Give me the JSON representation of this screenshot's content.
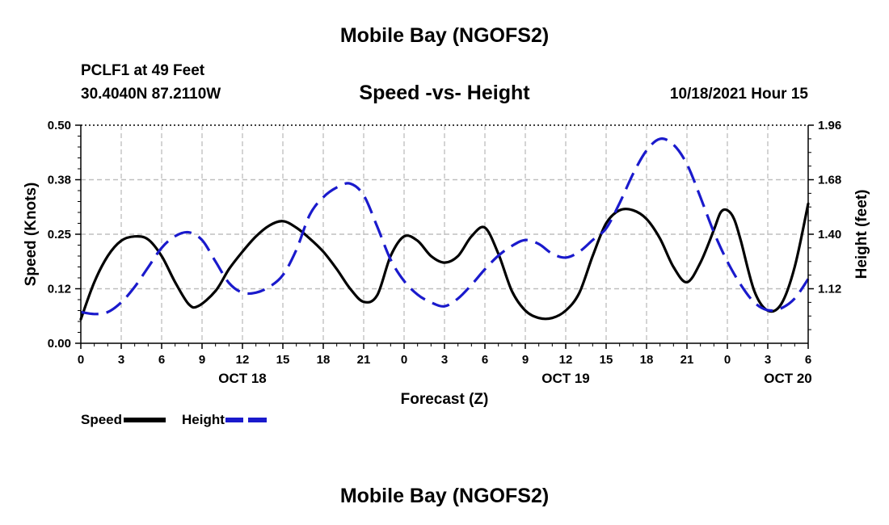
{
  "header": {
    "title": "Mobile Bay (NGOFS2)",
    "station": "PCLF1 at 49 Feet",
    "coords": "30.4040N  87.2110W",
    "subtitle": "Speed -vs- Height",
    "datetime": "10/18/2021 Hour 15"
  },
  "footer": {
    "title": "Mobile Bay (NGOFS2)"
  },
  "legend": {
    "speed_label": "Speed",
    "height_label": "Height",
    "speed_color": "#000000",
    "height_color": "#1a1acc"
  },
  "chart_data": {
    "type": "line",
    "title": "Speed -vs- Height",
    "xlabel": "Forecast (Z)",
    "ylabel": "Speed (Knots)",
    "y2label": "Height (feet)",
    "x_range_hours": [
      0,
      54
    ],
    "xticks": [
      {
        "h": 0,
        "label": "0"
      },
      {
        "h": 3,
        "label": "3"
      },
      {
        "h": 6,
        "label": "6"
      },
      {
        "h": 9,
        "label": "9"
      },
      {
        "h": 12,
        "label": "12"
      },
      {
        "h": 15,
        "label": "15"
      },
      {
        "h": 18,
        "label": "18"
      },
      {
        "h": 21,
        "label": "21"
      },
      {
        "h": 24,
        "label": "0"
      },
      {
        "h": 27,
        "label": "3"
      },
      {
        "h": 30,
        "label": "6"
      },
      {
        "h": 33,
        "label": "9"
      },
      {
        "h": 36,
        "label": "12"
      },
      {
        "h": 39,
        "label": "15"
      },
      {
        "h": 42,
        "label": "18"
      },
      {
        "h": 45,
        "label": "21"
      },
      {
        "h": 48,
        "label": "0"
      },
      {
        "h": 51,
        "label": "3"
      },
      {
        "h": 54,
        "label": "6"
      }
    ],
    "day_labels": [
      {
        "h": 12,
        "label": "OCT 18"
      },
      {
        "h": 36,
        "label": "OCT 19"
      },
      {
        "h": 52.5,
        "label": "OCT 20"
      }
    ],
    "ylim": [
      0,
      0.5
    ],
    "yticks": [
      {
        "v": 0.0,
        "label": "0.00"
      },
      {
        "v": 0.125,
        "label": "0.12"
      },
      {
        "v": 0.25,
        "label": "0.25"
      },
      {
        "v": 0.375,
        "label": "0.38"
      },
      {
        "v": 0.5,
        "label": "0.50"
      }
    ],
    "y2lim": [
      0.84,
      1.96
    ],
    "y2ticks": [
      {
        "v": 1.12,
        "label": "1.12"
      },
      {
        "v": 1.4,
        "label": "1.40"
      },
      {
        "v": 1.68,
        "label": "1.68"
      },
      {
        "v": 1.96,
        "label": "1.96"
      }
    ],
    "series": [
      {
        "name": "Speed",
        "axis": "left",
        "color": "#000000",
        "dash": "solid",
        "points": [
          [
            0,
            0.055
          ],
          [
            1,
            0.14
          ],
          [
            2,
            0.2
          ],
          [
            3,
            0.235
          ],
          [
            4,
            0.245
          ],
          [
            5,
            0.238
          ],
          [
            6,
            0.2
          ],
          [
            7,
            0.14
          ],
          [
            8,
            0.09
          ],
          [
            8.7,
            0.085
          ],
          [
            10,
            0.12
          ],
          [
            11,
            0.17
          ],
          [
            12,
            0.21
          ],
          [
            13,
            0.245
          ],
          [
            14,
            0.27
          ],
          [
            15,
            0.28
          ],
          [
            16,
            0.265
          ],
          [
            17,
            0.24
          ],
          [
            18,
            0.21
          ],
          [
            19,
            0.17
          ],
          [
            20,
            0.125
          ],
          [
            21,
            0.095
          ],
          [
            22,
            0.11
          ],
          [
            23,
            0.2
          ],
          [
            24,
            0.245
          ],
          [
            25,
            0.235
          ],
          [
            26,
            0.2
          ],
          [
            27,
            0.185
          ],
          [
            28,
            0.2
          ],
          [
            29,
            0.245
          ],
          [
            30,
            0.265
          ],
          [
            31,
            0.205
          ],
          [
            32,
            0.12
          ],
          [
            33,
            0.075
          ],
          [
            34,
            0.058
          ],
          [
            35,
            0.058
          ],
          [
            36,
            0.075
          ],
          [
            37,
            0.115
          ],
          [
            38,
            0.2
          ],
          [
            39,
            0.275
          ],
          [
            40,
            0.305
          ],
          [
            41,
            0.305
          ],
          [
            42,
            0.285
          ],
          [
            43,
            0.24
          ],
          [
            44,
            0.175
          ],
          [
            45,
            0.14
          ],
          [
            46,
            0.185
          ],
          [
            47,
            0.26
          ],
          [
            47.5,
            0.3
          ],
          [
            48,
            0.305
          ],
          [
            48.5,
            0.285
          ],
          [
            49,
            0.235
          ],
          [
            50,
            0.12
          ],
          [
            51,
            0.075
          ],
          [
            52,
            0.09
          ],
          [
            53,
            0.175
          ],
          [
            54,
            0.32
          ]
        ]
      },
      {
        "name": "Height",
        "axis": "right",
        "color": "#1a1acc",
        "dash": "dashed",
        "points": [
          [
            0,
            1.0
          ],
          [
            1,
            0.99
          ],
          [
            2,
            1.0
          ],
          [
            3,
            1.05
          ],
          [
            4,
            1.13
          ],
          [
            5,
            1.23
          ],
          [
            6,
            1.33
          ],
          [
            7,
            1.39
          ],
          [
            8,
            1.41
          ],
          [
            9,
            1.37
          ],
          [
            10,
            1.26
          ],
          [
            11,
            1.15
          ],
          [
            12,
            1.1
          ],
          [
            13,
            1.1
          ],
          [
            14,
            1.13
          ],
          [
            15,
            1.19
          ],
          [
            16,
            1.32
          ],
          [
            17,
            1.5
          ],
          [
            18,
            1.59
          ],
          [
            19,
            1.64
          ],
          [
            20,
            1.66
          ],
          [
            21,
            1.6
          ],
          [
            22,
            1.44
          ],
          [
            23,
            1.27
          ],
          [
            24,
            1.16
          ],
          [
            25,
            1.09
          ],
          [
            26,
            1.05
          ],
          [
            27,
            1.03
          ],
          [
            28,
            1.07
          ],
          [
            29,
            1.14
          ],
          [
            30,
            1.22
          ],
          [
            31,
            1.29
          ],
          [
            32,
            1.34
          ],
          [
            33,
            1.37
          ],
          [
            34,
            1.35
          ],
          [
            35,
            1.3
          ],
          [
            36,
            1.28
          ],
          [
            37,
            1.31
          ],
          [
            38,
            1.37
          ],
          [
            39,
            1.43
          ],
          [
            40,
            1.56
          ],
          [
            41,
            1.71
          ],
          [
            42,
            1.83
          ],
          [
            43,
            1.89
          ],
          [
            44,
            1.86
          ],
          [
            45,
            1.76
          ],
          [
            46,
            1.59
          ],
          [
            47,
            1.41
          ],
          [
            48,
            1.26
          ],
          [
            49,
            1.14
          ],
          [
            50,
            1.05
          ],
          [
            51,
            1.01
          ],
          [
            52,
            1.02
          ],
          [
            53,
            1.07
          ],
          [
            54,
            1.17
          ]
        ]
      }
    ]
  }
}
